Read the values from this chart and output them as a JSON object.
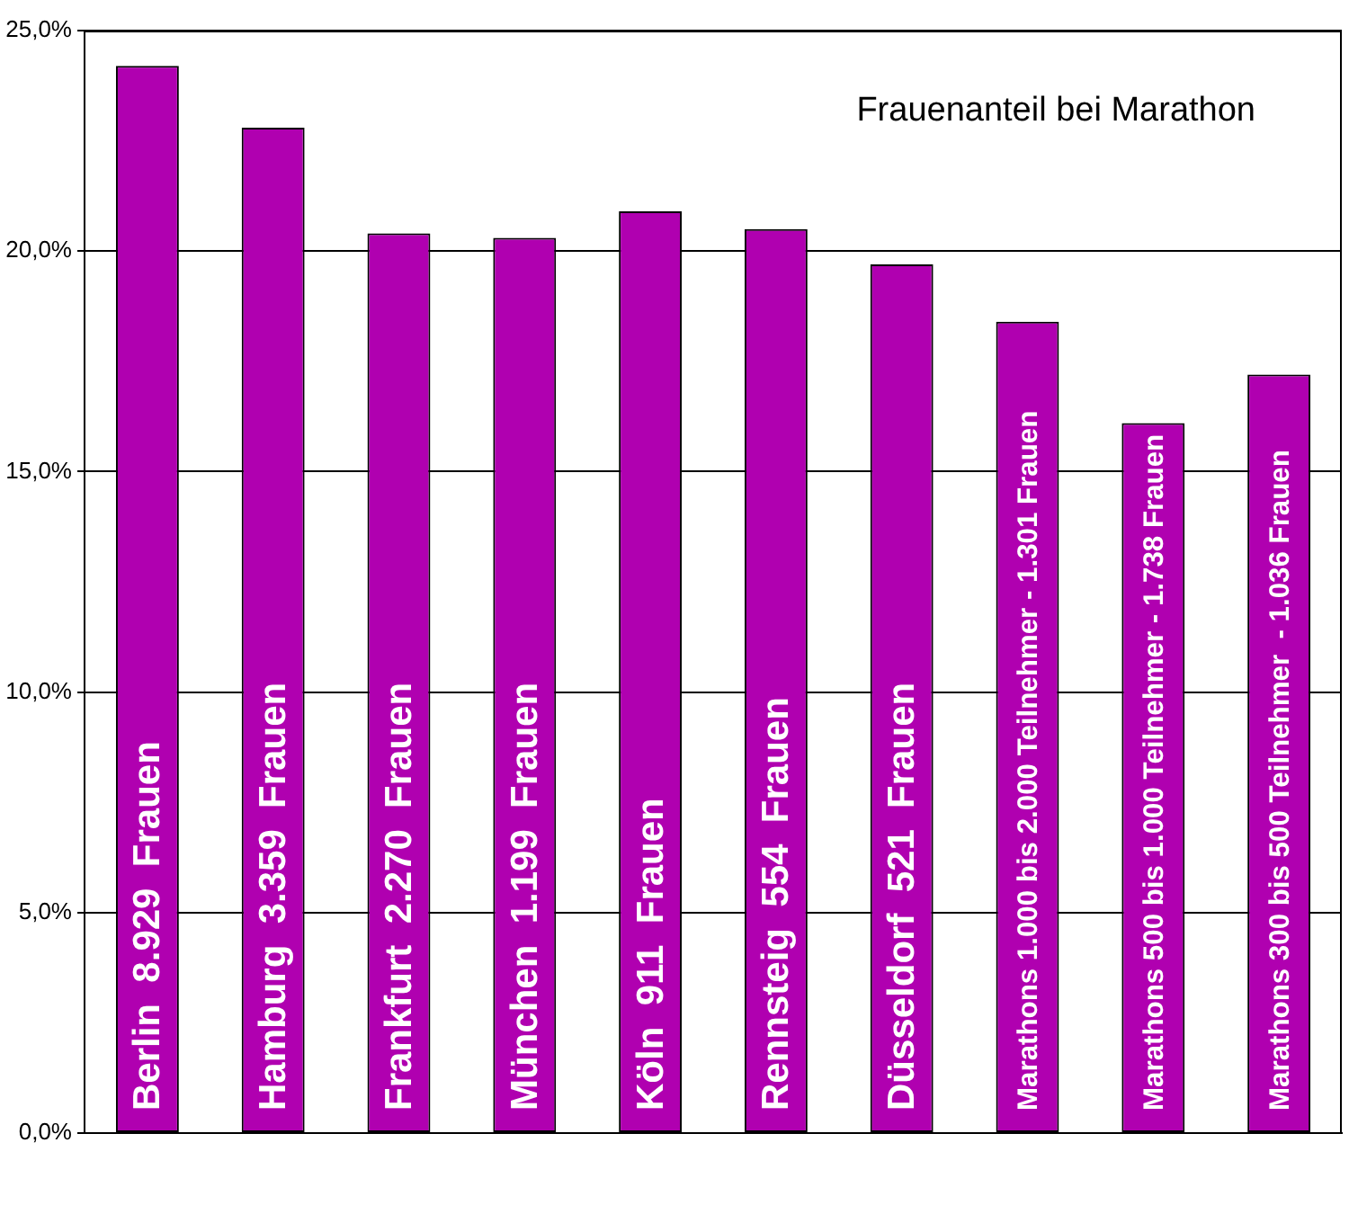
{
  "chart_data": {
    "type": "bar",
    "title": "Frauenanteil bei Marathon",
    "categories": [
      "Berlin  8.929  Frauen",
      "Hamburg  3.359  Frauen",
      "Frankfurt  2.270  Frauen",
      "München  1.199  Frauen",
      "Köln  911  Frauen",
      "Rennsteig  554  Frauen",
      "Düsseldorf  521  Frauen",
      "Marathons 1.000 bis 2.000 Teilnehmer - 1.301 Frauen",
      "Marathons 500 bis 1.000 Teilnehmer - 1.738 Frauen",
      "Marathons 300 bis 500 Teilnehmer  - 1.036 Frauen"
    ],
    "values": [
      24.2,
      22.8,
      20.4,
      20.3,
      20.9,
      20.5,
      19.7,
      18.4,
      16.1,
      17.2
    ],
    "color": "#b000b0",
    "ylim": [
      0,
      25
    ],
    "yticks": [
      {
        "value": 0,
        "label": "0,0%"
      },
      {
        "value": 5,
        "label": "5,0%"
      },
      {
        "value": 10,
        "label": "10,0%"
      },
      {
        "value": 15,
        "label": "15,0%"
      },
      {
        "value": 20,
        "label": "20,0%"
      },
      {
        "value": 25,
        "label": "25,0%"
      }
    ],
    "grid": "y"
  }
}
